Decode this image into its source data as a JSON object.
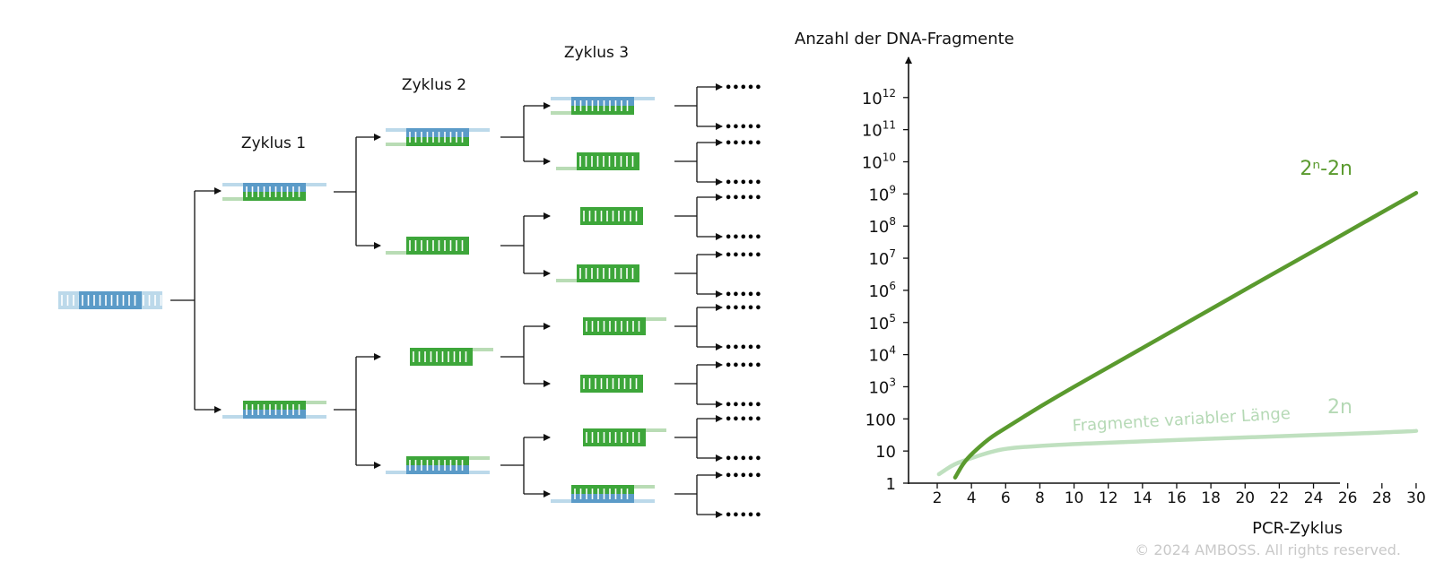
{
  "diagram": {
    "cycle_labels": [
      "Zyklus 1",
      "Zyklus 2",
      "Zyklus 3"
    ],
    "continuation": "•••••"
  },
  "chart_data": {
    "type": "line",
    "title": "",
    "ylabel": "Anzahl der DNA-Fragmente",
    "xlabel": "PCR-Zyklus",
    "y_scale": "log",
    "ylim": [
      1,
      1000000000000.0
    ],
    "xlim": [
      1,
      30
    ],
    "x_ticks": [
      "2",
      "4",
      "6",
      "8",
      "10",
      "12",
      "14",
      "16",
      "18",
      "20",
      "22",
      "24",
      "26",
      "28",
      "30"
    ],
    "y_ticks": [
      {
        "value": 1,
        "base": "1",
        "exp": ""
      },
      {
        "value": 10,
        "base": "10",
        "exp": ""
      },
      {
        "value": 100,
        "base": "100",
        "exp": ""
      },
      {
        "value": 1000,
        "base": "10",
        "exp": "3"
      },
      {
        "value": 10000,
        "base": "10",
        "exp": "4"
      },
      {
        "value": 100000,
        "base": "10",
        "exp": "5"
      },
      {
        "value": 1000000,
        "base": "10",
        "exp": "6"
      },
      {
        "value": 10000000,
        "base": "10",
        "exp": "7"
      },
      {
        "value": 100000000,
        "base": "10",
        "exp": "8"
      },
      {
        "value": 1000000000,
        "base": "10",
        "exp": "9"
      },
      {
        "value": 10000000000,
        "base": "10",
        "exp": "10"
      },
      {
        "value": 100000000000,
        "base": "10",
        "exp": "11"
      },
      {
        "value": 1000000000000,
        "base": "10",
        "exp": "12"
      }
    ],
    "grid": false,
    "series": [
      {
        "name": "2ⁿ-2n",
        "color": "#5a9a2e",
        "points": [
          [
            3.05,
            1.5
          ],
          [
            3.5,
            4
          ],
          [
            4,
            8
          ],
          [
            5,
            24
          ],
          [
            6,
            52
          ],
          [
            8,
            240
          ],
          [
            10,
            1000
          ],
          [
            12,
            4000
          ],
          [
            14,
            16000
          ],
          [
            16,
            65000
          ],
          [
            18,
            260000
          ],
          [
            20,
            1050000
          ],
          [
            22,
            4200000
          ],
          [
            24,
            16700000
          ],
          [
            26,
            67000000
          ],
          [
            28,
            268000000
          ],
          [
            30,
            1070000000
          ]
        ]
      },
      {
        "name": "2n",
        "color": "#bfe0bf",
        "annotation": "Fragmente variabler Länge",
        "points": [
          [
            2.1,
            1.9
          ],
          [
            3,
            4
          ],
          [
            4,
            6
          ],
          [
            5,
            9
          ],
          [
            6,
            12
          ],
          [
            8,
            14.5
          ],
          [
            10,
            16.5
          ],
          [
            14,
            20
          ],
          [
            18,
            24
          ],
          [
            22,
            29
          ],
          [
            26,
            34
          ],
          [
            30,
            42
          ]
        ]
      }
    ]
  },
  "copyright": "© 2024 AMBOSS. All rights reserved."
}
